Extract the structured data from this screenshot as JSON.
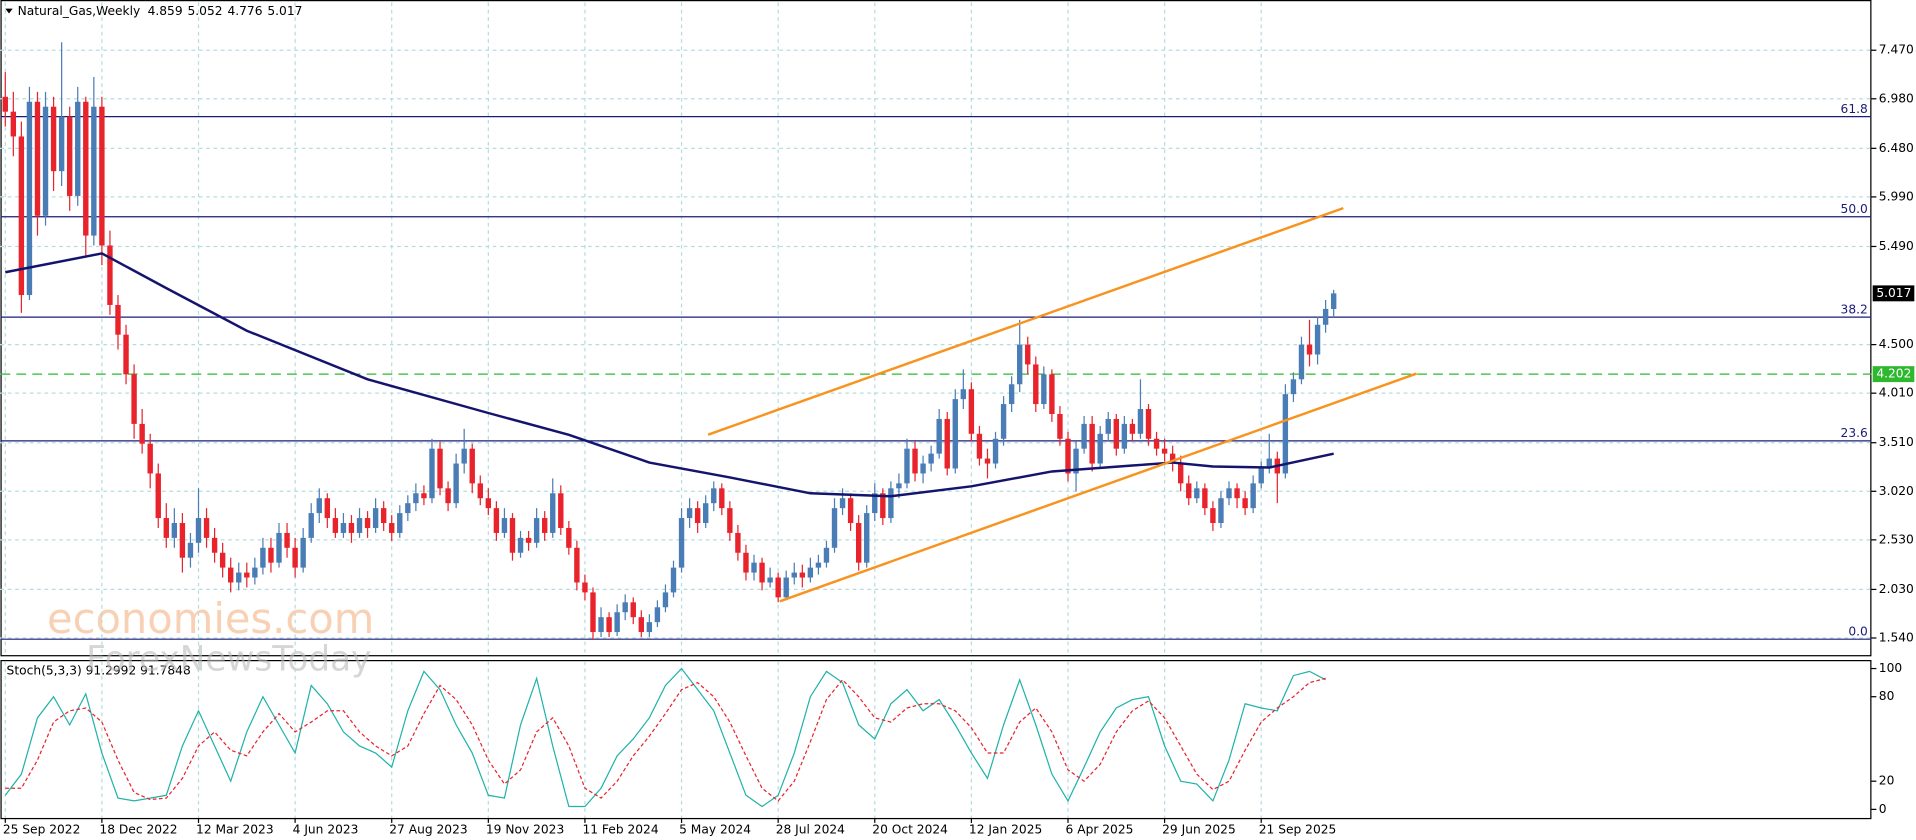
{
  "chart_data": {
    "type": "candlestick",
    "title": "Natural_Gas,Weekly",
    "bull_color": "#4a7db6",
    "bear_color": "#e8232c",
    "grid": true,
    "xlim": [
      -0.6,
      231.8
    ],
    "xticks": [
      {
        "value": 0,
        "label": "25 Sep 2022"
      },
      {
        "value": 12,
        "label": "18 Dec 2022"
      },
      {
        "value": 24,
        "label": "12 Mar 2023"
      },
      {
        "value": 36,
        "label": "4 Jun 2023"
      },
      {
        "value": 48,
        "label": "27 Aug 2023"
      },
      {
        "value": 60,
        "label": "19 Nov 2023"
      },
      {
        "value": 72,
        "label": "11 Feb 2024"
      },
      {
        "value": 84,
        "label": "5 May 2024"
      },
      {
        "value": 96,
        "label": "28 Jul 2024"
      },
      {
        "value": 108,
        "label": "20 Oct 2024"
      },
      {
        "value": 120,
        "label": "12 Jan 2025"
      },
      {
        "value": 132,
        "label": "6 Apr 2025"
      },
      {
        "value": 144,
        "label": "29 Jun 2025"
      },
      {
        "value": 156,
        "label": "21 Sep 2025"
      }
    ],
    "ylim": [
      1.355,
      7.952
    ],
    "yticks": [
      {
        "value": 7.47,
        "label": "7.470"
      },
      {
        "value": 6.98,
        "label": "6.980"
      },
      {
        "value": 6.48,
        "label": "6.480"
      },
      {
        "value": 5.99,
        "label": "5.990"
      },
      {
        "value": 5.49,
        "label": "5.490"
      },
      {
        "value": 4.5,
        "label": "4.500"
      },
      {
        "value": 4.01,
        "label": "4.010"
      },
      {
        "value": 3.51,
        "label": "3.510"
      },
      {
        "value": 3.02,
        "label": "3.020"
      },
      {
        "value": 2.53,
        "label": "2.530"
      },
      {
        "value": 2.03,
        "label": "2.030"
      },
      {
        "value": 1.54,
        "label": "1.540"
      }
    ],
    "candles": [
      [
        7.0,
        7.25,
        6.7,
        6.85
      ],
      [
        6.85,
        7.05,
        6.4,
        6.6
      ],
      [
        6.6,
        6.75,
        4.82,
        5.0
      ],
      [
        5.0,
        7.1,
        4.95,
        6.95
      ],
      [
        6.95,
        7.05,
        5.6,
        5.8
      ],
      [
        5.8,
        7.05,
        5.7,
        6.9
      ],
      [
        6.9,
        7.0,
        6.05,
        6.25
      ],
      [
        6.25,
        7.55,
        6.1,
        6.8
      ],
      [
        6.8,
        6.9,
        5.85,
        6.0
      ],
      [
        6.0,
        7.1,
        5.9,
        6.95
      ],
      [
        6.95,
        7.0,
        5.4,
        5.6
      ],
      [
        5.6,
        7.2,
        5.5,
        6.9
      ],
      [
        6.9,
        7.0,
        5.3,
        5.5
      ],
      [
        5.5,
        5.65,
        4.8,
        4.9
      ],
      [
        4.9,
        5.0,
        4.45,
        4.6
      ],
      [
        4.6,
        4.7,
        4.1,
        4.2
      ],
      [
        4.2,
        4.3,
        3.55,
        3.7
      ],
      [
        3.7,
        3.85,
        3.4,
        3.5
      ],
      [
        3.5,
        3.6,
        3.05,
        3.2
      ],
      [
        3.2,
        3.3,
        2.65,
        2.75
      ],
      [
        2.75,
        2.9,
        2.45,
        2.55
      ],
      [
        2.55,
        2.85,
        2.45,
        2.7
      ],
      [
        2.7,
        2.8,
        2.2,
        2.35
      ],
      [
        2.35,
        2.6,
        2.25,
        2.5
      ],
      [
        2.5,
        3.05,
        2.4,
        2.75
      ],
      [
        2.75,
        2.85,
        2.45,
        2.55
      ],
      [
        2.55,
        2.65,
        2.3,
        2.4
      ],
      [
        2.4,
        2.5,
        2.15,
        2.25
      ],
      [
        2.25,
        2.35,
        2.0,
        2.1
      ],
      [
        2.1,
        2.3,
        2.02,
        2.2
      ],
      [
        2.2,
        2.3,
        2.05,
        2.15
      ],
      [
        2.15,
        2.35,
        2.08,
        2.25
      ],
      [
        2.25,
        2.55,
        2.18,
        2.45
      ],
      [
        2.45,
        2.55,
        2.2,
        2.3
      ],
      [
        2.3,
        2.7,
        2.25,
        2.6
      ],
      [
        2.6,
        2.7,
        2.35,
        2.45
      ],
      [
        2.45,
        2.55,
        2.15,
        2.25
      ],
      [
        2.25,
        2.65,
        2.2,
        2.55
      ],
      [
        2.55,
        2.9,
        2.5,
        2.8
      ],
      [
        2.8,
        3.05,
        2.7,
        2.95
      ],
      [
        2.95,
        3.0,
        2.65,
        2.75
      ],
      [
        2.75,
        2.85,
        2.55,
        2.6
      ],
      [
        2.6,
        2.8,
        2.55,
        2.7
      ],
      [
        2.7,
        2.78,
        2.5,
        2.6
      ],
      [
        2.6,
        2.85,
        2.55,
        2.75
      ],
      [
        2.75,
        2.82,
        2.55,
        2.65
      ],
      [
        2.65,
        2.95,
        2.6,
        2.85
      ],
      [
        2.85,
        2.92,
        2.62,
        2.7
      ],
      [
        2.7,
        2.78,
        2.52,
        2.6
      ],
      [
        2.6,
        2.88,
        2.55,
        2.8
      ],
      [
        2.8,
        2.98,
        2.72,
        2.9
      ],
      [
        2.9,
        3.1,
        2.82,
        3.0
      ],
      [
        3.0,
        3.08,
        2.88,
        2.95
      ],
      [
        2.95,
        3.55,
        2.9,
        3.45
      ],
      [
        3.45,
        3.52,
        2.98,
        3.05
      ],
      [
        3.05,
        3.12,
        2.82,
        2.9
      ],
      [
        2.9,
        3.4,
        2.85,
        3.3
      ],
      [
        3.3,
        3.65,
        3.2,
        3.45
      ],
      [
        3.45,
        3.5,
        3.0,
        3.1
      ],
      [
        3.1,
        3.18,
        2.88,
        2.95
      ],
      [
        2.95,
        3.05,
        2.78,
        2.85
      ],
      [
        2.85,
        2.92,
        2.52,
        2.6
      ],
      [
        2.6,
        2.85,
        2.55,
        2.75
      ],
      [
        2.75,
        2.8,
        2.32,
        2.4
      ],
      [
        2.4,
        2.62,
        2.35,
        2.55
      ],
      [
        2.55,
        2.62,
        2.42,
        2.5
      ],
      [
        2.5,
        2.85,
        2.45,
        2.75
      ],
      [
        2.75,
        2.82,
        2.52,
        2.6
      ],
      [
        2.6,
        3.15,
        2.55,
        3.0
      ],
      [
        3.0,
        3.08,
        2.58,
        2.65
      ],
      [
        2.65,
        2.72,
        2.38,
        2.45
      ],
      [
        2.45,
        2.52,
        2.02,
        2.1
      ],
      [
        2.1,
        2.18,
        1.92,
        2.0
      ],
      [
        2.0,
        2.05,
        1.52,
        1.6
      ],
      [
        1.6,
        1.85,
        1.55,
        1.75
      ],
      [
        1.75,
        1.8,
        1.55,
        1.6
      ],
      [
        1.6,
        1.88,
        1.56,
        1.8
      ],
      [
        1.8,
        1.98,
        1.72,
        1.9
      ],
      [
        1.9,
        1.95,
        1.68,
        1.75
      ],
      [
        1.75,
        1.82,
        1.55,
        1.6
      ],
      [
        1.6,
        1.78,
        1.55,
        1.7
      ],
      [
        1.7,
        1.92,
        1.65,
        1.85
      ],
      [
        1.85,
        2.08,
        1.8,
        2.0
      ],
      [
        2.0,
        2.32,
        1.95,
        2.25
      ],
      [
        2.25,
        2.85,
        2.2,
        2.75
      ],
      [
        2.75,
        2.95,
        2.65,
        2.85
      ],
      [
        2.85,
        2.92,
        2.6,
        2.7
      ],
      [
        2.7,
        2.98,
        2.65,
        2.9
      ],
      [
        2.9,
        3.12,
        2.82,
        3.05
      ],
      [
        3.05,
        3.1,
        2.78,
        2.85
      ],
      [
        2.85,
        2.92,
        2.52,
        2.6
      ],
      [
        2.6,
        2.68,
        2.32,
        2.4
      ],
      [
        2.4,
        2.48,
        2.12,
        2.2
      ],
      [
        2.2,
        2.38,
        2.12,
        2.3
      ],
      [
        2.3,
        2.35,
        2.02,
        2.1
      ],
      [
        2.1,
        2.25,
        2.05,
        2.15
      ],
      [
        2.15,
        2.2,
        1.9,
        1.95
      ],
      [
        1.95,
        2.22,
        1.92,
        2.15
      ],
      [
        2.15,
        2.3,
        2.08,
        2.2
      ],
      [
        2.2,
        2.28,
        2.05,
        2.15
      ],
      [
        2.15,
        2.35,
        2.1,
        2.25
      ],
      [
        2.25,
        2.38,
        2.18,
        2.3
      ],
      [
        2.3,
        2.52,
        2.25,
        2.45
      ],
      [
        2.45,
        2.95,
        2.4,
        2.85
      ],
      [
        2.85,
        3.05,
        2.78,
        2.95
      ],
      [
        2.95,
        3.0,
        2.62,
        2.7
      ],
      [
        2.7,
        2.78,
        2.22,
        2.3
      ],
      [
        2.3,
        2.88,
        2.25,
        2.8
      ],
      [
        2.8,
        3.1,
        2.72,
        3.0
      ],
      [
        3.0,
        3.05,
        2.68,
        2.75
      ],
      [
        2.75,
        3.12,
        2.7,
        3.05
      ],
      [
        3.05,
        3.2,
        2.95,
        3.1
      ],
      [
        3.1,
        3.55,
        3.05,
        3.45
      ],
      [
        3.45,
        3.52,
        3.12,
        3.2
      ],
      [
        3.2,
        3.38,
        3.1,
        3.3
      ],
      [
        3.3,
        3.48,
        3.22,
        3.4
      ],
      [
        3.4,
        3.85,
        3.35,
        3.75
      ],
      [
        3.75,
        3.82,
        3.18,
        3.25
      ],
      [
        3.25,
        4.05,
        3.2,
        3.95
      ],
      [
        3.95,
        4.25,
        3.85,
        4.05
      ],
      [
        4.05,
        4.12,
        3.52,
        3.6
      ],
      [
        3.6,
        3.68,
        3.28,
        3.35
      ],
      [
        3.35,
        3.45,
        3.15,
        3.3
      ],
      [
        3.3,
        3.62,
        3.25,
        3.55
      ],
      [
        3.55,
        3.98,
        3.48,
        3.9
      ],
      [
        3.9,
        4.18,
        3.82,
        4.1
      ],
      [
        4.1,
        4.75,
        4.02,
        4.5
      ],
      [
        4.5,
        4.58,
        4.2,
        4.3
      ],
      [
        4.3,
        4.38,
        3.82,
        3.9
      ],
      [
        3.9,
        4.28,
        3.85,
        4.2
      ],
      [
        4.2,
        4.25,
        3.72,
        3.8
      ],
      [
        3.8,
        3.88,
        3.48,
        3.55
      ],
      [
        3.55,
        3.62,
        3.12,
        3.2
      ],
      [
        3.2,
        3.52,
        3.02,
        3.45
      ],
      [
        3.45,
        3.78,
        3.4,
        3.7
      ],
      [
        3.7,
        3.78,
        3.22,
        3.3
      ],
      [
        3.3,
        3.68,
        3.25,
        3.6
      ],
      [
        3.6,
        3.82,
        3.52,
        3.75
      ],
      [
        3.75,
        3.8,
        3.38,
        3.45
      ],
      [
        3.45,
        3.78,
        3.4,
        3.7
      ],
      [
        3.7,
        3.75,
        3.52,
        3.6
      ],
      [
        3.6,
        4.15,
        3.55,
        3.85
      ],
      [
        3.85,
        3.9,
        3.48,
        3.55
      ],
      [
        3.55,
        3.62,
        3.38,
        3.45
      ],
      [
        3.45,
        3.55,
        3.32,
        3.4
      ],
      [
        3.4,
        3.48,
        3.22,
        3.3
      ],
      [
        3.3,
        3.38,
        3.02,
        3.1
      ],
      [
        3.1,
        3.18,
        2.88,
        2.95
      ],
      [
        2.95,
        3.12,
        2.9,
        3.05
      ],
      [
        3.05,
        3.1,
        2.78,
        2.85
      ],
      [
        2.85,
        2.92,
        2.62,
        2.7
      ],
      [
        2.7,
        3.02,
        2.65,
        2.95
      ],
      [
        2.95,
        3.12,
        2.88,
        3.05
      ],
      [
        3.05,
        3.1,
        2.85,
        2.95
      ],
      [
        2.95,
        3.02,
        2.78,
        2.85
      ],
      [
        2.85,
        3.18,
        2.8,
        3.1
      ],
      [
        3.1,
        3.32,
        3.05,
        3.25
      ],
      [
        3.25,
        3.6,
        3.2,
        3.35
      ],
      [
        3.35,
        3.42,
        2.9,
        3.2
      ],
      [
        3.2,
        4.1,
        3.15,
        4.0
      ],
      [
        4.0,
        4.22,
        3.92,
        4.15
      ],
      [
        4.15,
        4.58,
        4.1,
        4.5
      ],
      [
        4.5,
        4.75,
        4.28,
        4.4
      ],
      [
        4.4,
        4.78,
        4.3,
        4.7
      ],
      [
        4.7,
        4.95,
        4.62,
        4.86
      ],
      [
        4.859,
        5.052,
        4.776,
        5.017
      ]
    ],
    "moving_average": {
      "color": "#14146e",
      "x": [
        0,
        12,
        20,
        30,
        45,
        60,
        70,
        80,
        90,
        100,
        110,
        120,
        130,
        140,
        145,
        150,
        157,
        165
      ],
      "values": [
        5.23,
        5.42,
        5.07,
        4.64,
        4.15,
        3.81,
        3.59,
        3.31,
        3.16,
        3.0,
        2.97,
        3.07,
        3.22,
        3.28,
        3.31,
        3.27,
        3.26,
        3.4
      ]
    },
    "trendlines": {
      "color": "#f7931e",
      "lines": [
        {
          "x": [
            87.3,
            166.2
          ],
          "values": [
            3.591,
            5.877
          ]
        },
        {
          "x": [
            96.2,
            175.3
          ],
          "values": [
            1.91,
            4.208
          ]
        }
      ]
    },
    "fib_levels": {
      "color": "#1c1c78",
      "levels": [
        {
          "label": "61.8",
          "value": 6.8
        },
        {
          "label": "50.0",
          "value": 5.79
        },
        {
          "label": "38.2",
          "value": 4.777
        },
        {
          "label": "23.6",
          "value": 3.529
        },
        {
          "label": "0.0",
          "value": 1.528
        }
      ]
    },
    "support_line": {
      "value": 4.202,
      "color": "#2db82d"
    },
    "indicator": {
      "type": "stochastic",
      "label": "Stoch(5,3,3) 91.2992 91.7848",
      "ylim": [
        -6.1,
        105.2
      ],
      "yticks": [
        100,
        80,
        20,
        0
      ],
      "x": [
        0,
        2,
        4,
        6,
        8,
        10,
        12,
        14,
        16,
        18,
        20,
        22,
        24,
        26,
        28,
        30,
        32,
        34,
        36,
        38,
        40,
        42,
        44,
        46,
        48,
        50,
        52,
        54,
        56,
        58,
        60,
        62,
        64,
        66,
        68,
        70,
        72,
        74,
        76,
        78,
        80,
        82,
        84,
        86,
        88,
        90,
        92,
        94,
        96,
        98,
        100,
        102,
        104,
        106,
        108,
        110,
        112,
        114,
        116,
        118,
        120,
        122,
        124,
        126,
        128,
        130,
        132,
        134,
        136,
        138,
        140,
        142,
        144,
        146,
        148,
        150,
        152,
        154,
        156,
        158,
        160,
        162,
        164
      ],
      "k": {
        "color": "#20b2aa",
        "values": [
          10,
          25,
          65,
          80,
          60,
          82,
          40,
          8,
          6,
          8,
          10,
          45,
          70,
          45,
          20,
          55,
          80,
          60,
          40,
          88,
          75,
          55,
          45,
          40,
          30,
          70,
          98,
          85,
          60,
          40,
          10,
          8,
          60,
          93,
          45,
          2,
          2,
          15,
          38,
          50,
          65,
          88,
          100,
          85,
          70,
          40,
          10,
          2,
          10,
          40,
          80,
          98,
          90,
          60,
          50,
          75,
          85,
          70,
          78,
          60,
          40,
          22,
          60,
          92,
          60,
          25,
          6,
          30,
          55,
          72,
          78,
          80,
          45,
          20,
          18,
          6,
          35,
          75,
          72,
          70,
          95,
          98,
          92
        ]
      },
      "d": {
        "color": "#e8232c",
        "values": [
          15,
          15,
          35,
          62,
          70,
          72,
          62,
          35,
          12,
          7,
          8,
          22,
          45,
          55,
          42,
          38,
          55,
          68,
          55,
          62,
          70,
          70,
          55,
          45,
          38,
          45,
          68,
          88,
          78,
          60,
          35,
          18,
          28,
          55,
          65,
          45,
          15,
          8,
          20,
          38,
          52,
          68,
          85,
          90,
          80,
          62,
          38,
          15,
          6,
          20,
          48,
          78,
          92,
          80,
          65,
          62,
          72,
          75,
          75,
          70,
          58,
          40,
          40,
          62,
          72,
          55,
          28,
          20,
          32,
          55,
          70,
          77,
          65,
          45,
          25,
          14,
          20,
          42,
          62,
          72,
          80,
          90,
          93
        ]
      }
    },
    "watermark": [
      "economies.com",
      "ForexNewsToday"
    ]
  }
}
